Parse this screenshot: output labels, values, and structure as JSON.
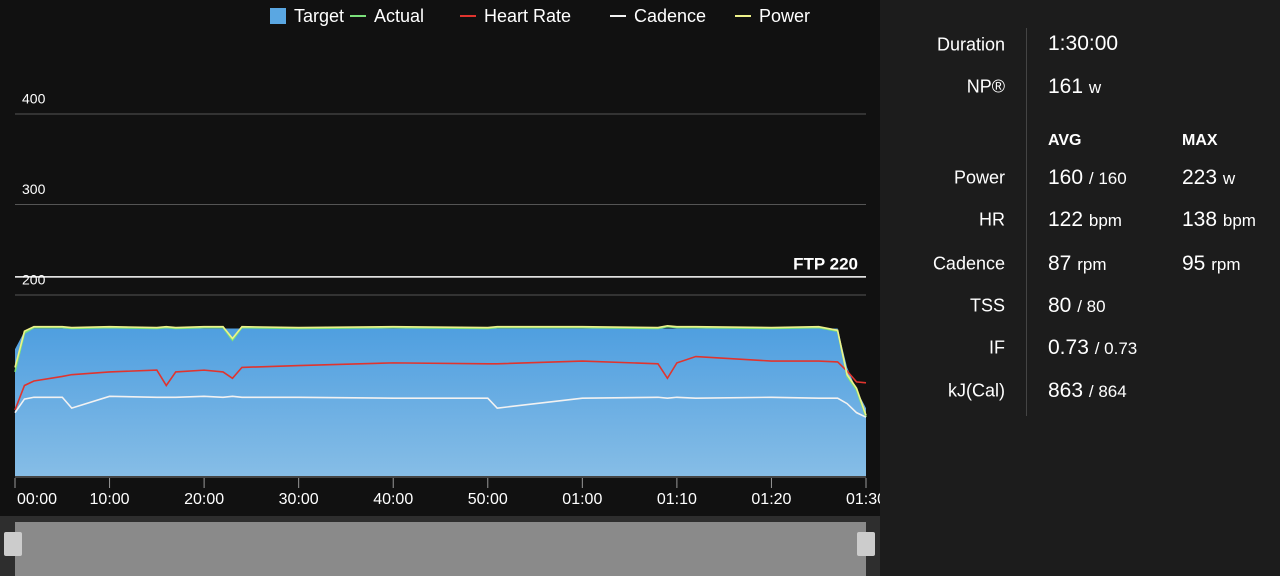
{
  "chart_data": {
    "type": "line",
    "legend": [
      "Target",
      "Actual",
      "Heart Rate",
      "Cadence",
      "Power"
    ],
    "x": [
      0,
      1,
      2,
      5,
      6,
      10,
      15,
      16,
      17,
      20,
      22,
      23,
      24,
      30,
      40,
      50,
      51,
      60,
      68,
      69,
      70,
      72,
      80,
      85,
      87,
      88,
      89,
      90
    ],
    "xlim": [
      0,
      90
    ],
    "xticks": [
      {
        "value": 0,
        "label": "00:00"
      },
      {
        "value": 10,
        "label": "10:00"
      },
      {
        "value": 20,
        "label": "20:00"
      },
      {
        "value": 30,
        "label": "30:00"
      },
      {
        "value": 40,
        "label": "40:00"
      },
      {
        "value": 50,
        "label": "50:00"
      },
      {
        "value": 60,
        "label": "01:00"
      },
      {
        "value": 70,
        "label": "01:10"
      },
      {
        "value": 80,
        "label": "01:20"
      },
      {
        "value": 90,
        "label": "01:30"
      }
    ],
    "ylim": [
      0,
      400
    ],
    "yticks": [
      200,
      300,
      400
    ],
    "grid": true,
    "ftp": {
      "value": 220,
      "label": "FTP 220"
    },
    "series": [
      {
        "name": "Target",
        "style": "area",
        "color": "#5aa7e2",
        "values": [
          140,
          160,
          163,
          163,
          163,
          163,
          163,
          163,
          163,
          163,
          163,
          163,
          163,
          163,
          163,
          163,
          163,
          163,
          163,
          163,
          163,
          163,
          163,
          163,
          163,
          120,
          95,
          75
        ]
      },
      {
        "name": "Actual",
        "style": "line",
        "color": "#7be07b",
        "values": [
          115,
          158,
          164,
          164,
          163,
          164,
          163,
          164,
          163,
          164,
          164,
          150,
          164,
          163,
          164,
          163,
          164,
          164,
          163,
          165,
          164,
          164,
          163,
          164,
          160,
          110,
          95,
          65
        ]
      },
      {
        "name": "Heart Rate",
        "style": "line",
        "color": "#e0342e",
        "values": [
          73,
          100,
          105,
          110,
          112,
          115,
          117,
          100,
          115,
          117,
          115,
          108,
          120,
          122,
          125,
          124,
          124,
          127,
          124,
          108,
          125,
          132,
          127,
          127,
          126,
          116,
          104,
          103
        ]
      },
      {
        "name": "Cadence",
        "style": "line",
        "color": "#f2f2f2",
        "values": [
          70,
          85,
          87,
          87,
          75,
          88,
          87,
          87,
          87,
          88,
          87,
          88,
          87,
          87,
          86,
          86,
          75,
          86,
          87,
          86,
          87,
          86,
          87,
          86,
          86,
          80,
          70,
          65
        ]
      },
      {
        "name": "Power",
        "style": "line",
        "color": "#eef28a",
        "values": [
          120,
          160,
          165,
          165,
          164,
          165,
          164,
          165,
          164,
          165,
          165,
          152,
          165,
          164,
          165,
          164,
          165,
          165,
          164,
          166,
          165,
          165,
          164,
          165,
          161,
          112,
          97,
          67
        ]
      }
    ]
  },
  "stats": {
    "duration": {
      "label": "Duration",
      "value": "1:30:00"
    },
    "np": {
      "label": "NP®",
      "value": "161",
      "unit": "w"
    },
    "headers": [
      "AVG",
      "MAX"
    ],
    "rows": [
      {
        "label": "Power",
        "avg": "160",
        "avg_sub": "/ 160",
        "max": "223",
        "max_unit": "w"
      },
      {
        "label": "HR",
        "avg": "122",
        "avg_sub": "bpm",
        "max": "138",
        "max_unit": "bpm"
      },
      {
        "label": "Cadence",
        "avg": "87",
        "avg_sub": "rpm",
        "max": "95",
        "max_unit": "rpm"
      },
      {
        "label": "TSS",
        "avg": "80",
        "avg_sub": "/ 80"
      },
      {
        "label": "IF",
        "avg": "0.73",
        "avg_sub": "/ 0.73"
      },
      {
        "label": "kJ(Cal)",
        "avg": "863",
        "avg_sub": "/ 864"
      }
    ]
  }
}
